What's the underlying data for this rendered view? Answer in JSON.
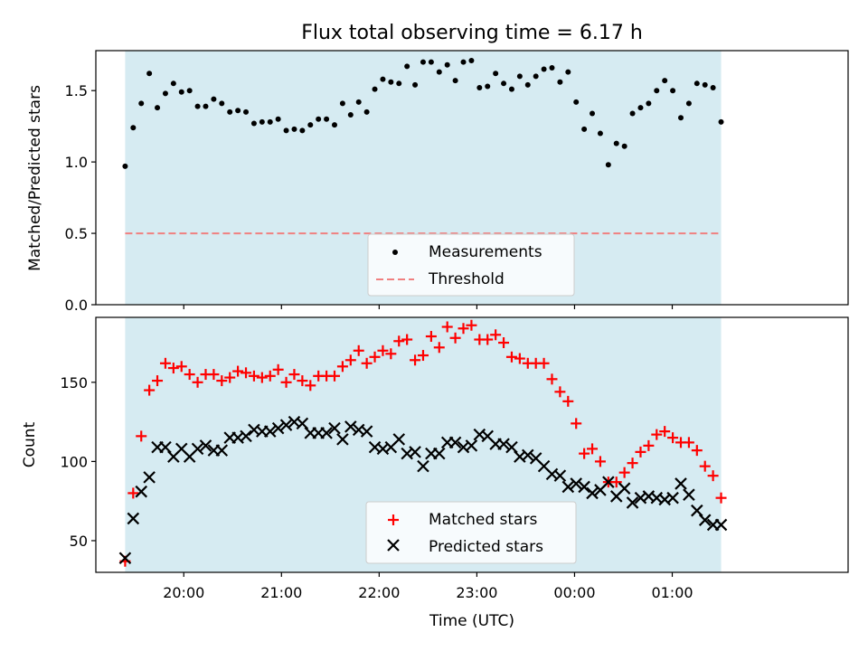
{
  "chart_data": [
    {
      "type": "scatter",
      "title": "Flux total observing time = 6.17 h",
      "xlabel": "",
      "ylabel": "Matched/Predicted stars",
      "ylim": [
        0,
        1.78
      ],
      "yticks": [
        "0.0",
        "0.5",
        "1.0",
        "1.5"
      ],
      "ytick_values": [
        0,
        0.5,
        1.0,
        1.5
      ],
      "grid": false,
      "legend_position": "bottom-center",
      "legend": [
        {
          "name": "Measurements",
          "marker": "dot",
          "color": "#000000"
        },
        {
          "name": "Threshold",
          "marker": "dashed-line",
          "color": "#f08080"
        }
      ],
      "threshold": 0.5,
      "shaded_region_color": "#add8e6",
      "series": [
        {
          "name": "Measurements",
          "color": "#000000",
          "values": [
            0.97,
            1.24,
            1.41,
            1.62,
            1.38,
            1.48,
            1.55,
            1.49,
            1.5,
            1.39,
            1.39,
            1.44,
            1.41,
            1.35,
            1.36,
            1.35,
            1.27,
            1.28,
            1.28,
            1.3,
            1.22,
            1.23,
            1.22,
            1.26,
            1.3,
            1.3,
            1.26,
            1.41,
            1.33,
            1.42,
            1.35,
            1.51,
            1.58,
            1.56,
            1.55,
            1.67,
            1.54,
            1.7,
            1.7,
            1.63,
            1.68,
            1.57,
            1.7,
            1.71,
            1.52,
            1.53,
            1.62,
            1.55,
            1.51,
            1.6,
            1.54,
            1.6,
            1.65,
            1.66,
            1.56,
            1.63,
            1.42,
            1.23,
            1.34,
            1.2,
            0.98,
            1.13,
            1.11,
            1.34,
            1.38,
            1.41,
            1.5,
            1.57,
            1.5,
            1.31,
            1.41,
            1.55,
            1.54,
            1.52,
            1.28
          ]
        }
      ]
    },
    {
      "type": "scatter",
      "title": "",
      "xlabel": "Time (UTC)",
      "ylabel": "Count",
      "ylim": [
        30,
        191
      ],
      "yticks": [
        "50",
        "100",
        "150"
      ],
      "ytick_values": [
        50,
        100,
        150
      ],
      "xticks": [
        "20:00",
        "21:00",
        "22:00",
        "23:00",
        "00:00",
        "01:00"
      ],
      "xtick_hours": [
        20,
        21,
        22,
        23,
        24,
        25
      ],
      "xlim_hours": [
        19.1,
        26.8
      ],
      "observing_window_hours": [
        19.4,
        25.5
      ],
      "grid": false,
      "legend_position": "bottom-center",
      "legend": [
        {
          "name": "Matched stars",
          "marker": "plus",
          "color": "#ff0000"
        },
        {
          "name": "Predicted stars",
          "marker": "x",
          "color": "#000000"
        }
      ],
      "shaded_region_color": "#add8e6",
      "series": [
        {
          "name": "Matched stars",
          "color": "#ff0000",
          "values": [
            37,
            80,
            116,
            145,
            151,
            162,
            159,
            160,
            155,
            150,
            155,
            155,
            151,
            153,
            157,
            156,
            154,
            153,
            154,
            158,
            150,
            155,
            151,
            148,
            154,
            154,
            154,
            160,
            164,
            170,
            162,
            166,
            170,
            168,
            176,
            177,
            164,
            167,
            179,
            172,
            185,
            178,
            184,
            186,
            177,
            177,
            180,
            175,
            166,
            165,
            162,
            162,
            162,
            152,
            144,
            138,
            124,
            105,
            108,
            100,
            87,
            87,
            93,
            99,
            106,
            110,
            117,
            119,
            115,
            112,
            112,
            107,
            97,
            91,
            77
          ]
        },
        {
          "name": "Predicted stars",
          "color": "#000000",
          "values": [
            39,
            64,
            81,
            90,
            109,
            109,
            103,
            108,
            103,
            108,
            110,
            107,
            107,
            115,
            115,
            116,
            120,
            119,
            119,
            121,
            123,
            125,
            124,
            118,
            118,
            118,
            121,
            114,
            122,
            120,
            119,
            109,
            108,
            109,
            114,
            105,
            106,
            97,
            105,
            105,
            112,
            112,
            109,
            110,
            117,
            116,
            111,
            111,
            109,
            103,
            104,
            102,
            97,
            92,
            91,
            84,
            86,
            84,
            80,
            82,
            87,
            78,
            83,
            74,
            77,
            78,
            77,
            76,
            77,
            86,
            79,
            69,
            63,
            60,
            60
          ]
        }
      ]
    }
  ]
}
